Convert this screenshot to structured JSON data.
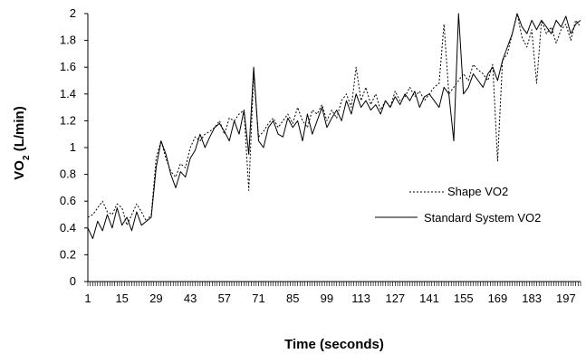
{
  "chart_data": {
    "type": "line",
    "xlabel": "Time (seconds)",
    "ylabel": "VO2 (L/min)",
    "ylabel_main": "VO",
    "ylabel_sub": "2",
    "ylabel_rest": " (L/min)",
    "ylim": [
      0,
      2
    ],
    "yticks": [
      0,
      0.2,
      0.4,
      0.6,
      0.8,
      1,
      1.2,
      1.4,
      1.6,
      1.8,
      2
    ],
    "ytick_labels": [
      "0",
      "0.2",
      "0.4",
      "0.6",
      "0.8",
      "1",
      "1.2",
      "1.4",
      "1.6",
      "1.8",
      "2"
    ],
    "xlim": [
      1,
      203
    ],
    "xtick_labels": [
      "1",
      "15",
      "29",
      "43",
      "57",
      "71",
      "85",
      "99",
      "113",
      "127",
      "141",
      "155",
      "169",
      "183",
      "197"
    ],
    "xtick_values": [
      1,
      15,
      29,
      43,
      57,
      71,
      85,
      99,
      113,
      127,
      141,
      155,
      169,
      183,
      197
    ],
    "grid": false,
    "legend_position": "right",
    "series": [
      {
        "name": "Shape VO2",
        "style": "dotted",
        "color": "#000000",
        "x": [
          1,
          3,
          5,
          7,
          9,
          11,
          13,
          15,
          17,
          19,
          21,
          23,
          25,
          27,
          29,
          31,
          33,
          35,
          37,
          39,
          41,
          43,
          45,
          47,
          49,
          51,
          53,
          55,
          57,
          59,
          61,
          63,
          65,
          67,
          69,
          71,
          73,
          75,
          77,
          79,
          81,
          83,
          85,
          87,
          89,
          91,
          93,
          95,
          97,
          99,
          101,
          103,
          105,
          107,
          109,
          111,
          113,
          115,
          117,
          119,
          121,
          123,
          125,
          127,
          129,
          131,
          133,
          135,
          137,
          139,
          141,
          143,
          145,
          147,
          149,
          151,
          153,
          155,
          157,
          159,
          161,
          163,
          165,
          167,
          169,
          171,
          173,
          175,
          177,
          179,
          181,
          183,
          185,
          187,
          189,
          191,
          193,
          195,
          197,
          199,
          201,
          203
        ],
        "y": [
          0.48,
          0.5,
          0.55,
          0.6,
          0.52,
          0.5,
          0.58,
          0.55,
          0.42,
          0.5,
          0.58,
          0.52,
          0.45,
          0.5,
          0.92,
          1.05,
          0.92,
          0.82,
          0.78,
          0.88,
          0.85,
          1.0,
          1.08,
          1.05,
          1.1,
          1.12,
          1.15,
          1.2,
          1.1,
          1.22,
          1.2,
          1.25,
          1.28,
          0.68,
          1.55,
          1.08,
          1.12,
          1.18,
          1.22,
          1.15,
          1.2,
          1.25,
          1.18,
          1.3,
          1.2,
          1.15,
          1.28,
          1.25,
          1.32,
          1.2,
          1.28,
          1.22,
          1.35,
          1.4,
          1.3,
          1.6,
          1.35,
          1.45,
          1.32,
          1.4,
          1.28,
          1.35,
          1.3,
          1.42,
          1.35,
          1.38,
          1.45,
          1.38,
          1.42,
          1.35,
          1.4,
          1.45,
          1.48,
          1.92,
          1.4,
          1.45,
          1.5,
          1.55,
          1.5,
          1.62,
          1.58,
          1.55,
          1.5,
          1.62,
          0.9,
          1.65,
          1.7,
          1.85,
          2.0,
          1.82,
          1.75,
          1.88,
          1.48,
          1.95,
          1.85,
          1.9,
          1.78,
          1.88,
          1.92,
          1.8,
          1.95,
          1.9
        ]
      },
      {
        "name": "Standard System VO2",
        "style": "solid",
        "color": "#000000",
        "x": [
          1,
          3,
          5,
          7,
          9,
          11,
          13,
          15,
          17,
          19,
          21,
          23,
          25,
          27,
          29,
          31,
          33,
          35,
          37,
          39,
          41,
          43,
          45,
          47,
          49,
          51,
          53,
          55,
          57,
          59,
          61,
          63,
          65,
          67,
          69,
          71,
          73,
          75,
          77,
          79,
          81,
          83,
          85,
          87,
          89,
          91,
          93,
          95,
          97,
          99,
          101,
          103,
          105,
          107,
          109,
          111,
          113,
          115,
          117,
          119,
          121,
          123,
          125,
          127,
          129,
          131,
          133,
          135,
          137,
          139,
          141,
          143,
          145,
          147,
          149,
          151,
          153,
          155,
          157,
          159,
          161,
          163,
          165,
          167,
          169,
          171,
          173,
          175,
          177,
          179,
          181,
          183,
          185,
          187,
          189,
          191,
          193,
          195,
          197,
          199,
          201,
          203
        ],
        "y": [
          0.4,
          0.32,
          0.45,
          0.38,
          0.5,
          0.4,
          0.55,
          0.42,
          0.48,
          0.38,
          0.52,
          0.42,
          0.45,
          0.48,
          0.85,
          1.05,
          0.95,
          0.8,
          0.7,
          0.82,
          0.78,
          0.92,
          0.98,
          1.1,
          1.0,
          1.08,
          1.15,
          1.18,
          1.12,
          1.05,
          1.2,
          1.1,
          1.28,
          0.95,
          1.6,
          1.05,
          1.0,
          1.15,
          1.2,
          1.1,
          1.08,
          1.22,
          1.15,
          1.2,
          1.05,
          1.25,
          1.1,
          1.2,
          1.3,
          1.15,
          1.22,
          1.28,
          1.2,
          1.35,
          1.25,
          1.4,
          1.3,
          1.35,
          1.28,
          1.32,
          1.25,
          1.35,
          1.3,
          1.38,
          1.32,
          1.4,
          1.35,
          1.42,
          1.3,
          1.38,
          1.4,
          1.35,
          1.3,
          1.45,
          1.4,
          1.05,
          2.0,
          1.4,
          1.45,
          1.55,
          1.5,
          1.45,
          1.55,
          1.6,
          1.5,
          1.65,
          1.75,
          1.85,
          2.0,
          1.9,
          1.85,
          1.95,
          1.88,
          1.95,
          1.9,
          1.85,
          1.95,
          1.9,
          1.98,
          1.85,
          1.92,
          1.95
        ]
      }
    ]
  }
}
